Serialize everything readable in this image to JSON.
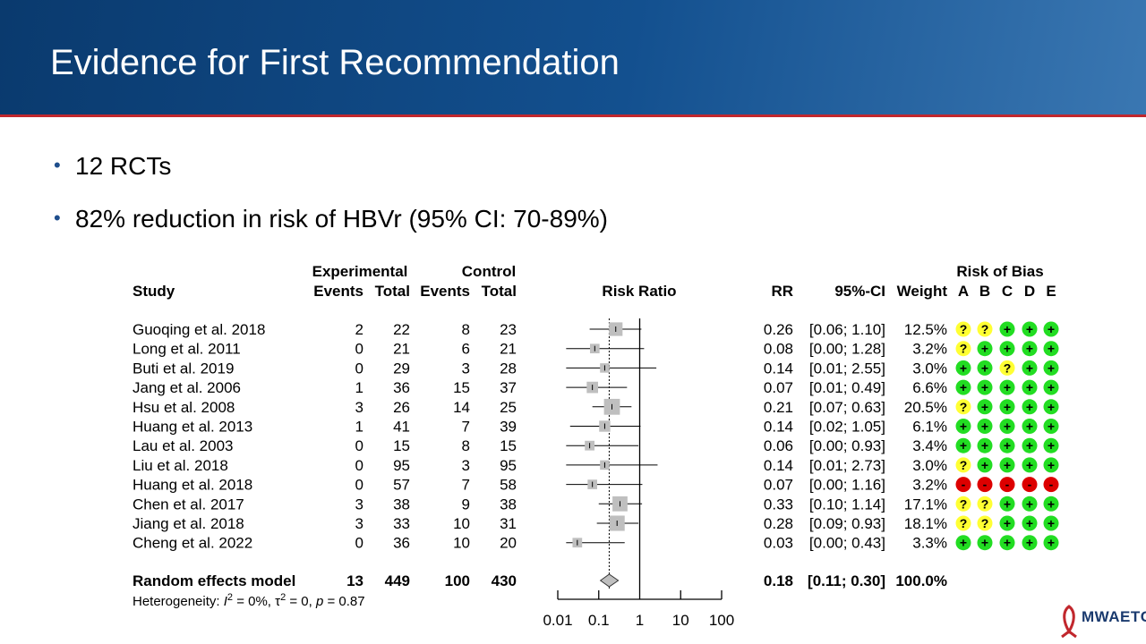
{
  "slide": {
    "title": "Evidence for First Recommendation",
    "bullets": [
      "12 RCTs",
      "82% reduction in risk of HBVr (95% CI: 70-89%)"
    ],
    "logo_text": "MWAETC"
  },
  "colors": {
    "header": "#13508f",
    "accent": "#c1272d",
    "rob_yes": "#22dd22",
    "rob_unclear": "#ffff33",
    "rob_no": "#dd0000",
    "box": "#bfbfbf"
  },
  "chart_data": {
    "type": "forest",
    "headers": {
      "study": "Study",
      "group_exp": "Experimental",
      "group_ctrl": "Control",
      "events": "Events",
      "total": "Total",
      "plot": "Risk Ratio",
      "rr": "RR",
      "ci": "95%-CI",
      "weight": "Weight",
      "rob_title": "Risk of Bias",
      "rob_domains": [
        "A",
        "B",
        "C",
        "D",
        "E"
      ]
    },
    "x_scale": "log",
    "xlim": [
      0.01,
      100
    ],
    "reference_line": 1,
    "x_ticks": [
      0.01,
      0.1,
      1,
      10,
      100
    ],
    "x_tick_labels": [
      "0.01",
      "0.1",
      "1",
      "10",
      "100"
    ],
    "studies": [
      {
        "name": "Guoqing et al. 2018",
        "e_ev": "2",
        "e_tot": "22",
        "c_ev": "8",
        "c_tot": "23",
        "rr": 0.26,
        "lo": 0.06,
        "hi": 1.1,
        "rr_txt": "0.26",
        "ci_txt": "[0.06; 1.10]",
        "weight": 12.5,
        "weight_txt": "12.5%",
        "rob": [
          "?",
          "?",
          "+",
          "+",
          "+"
        ]
      },
      {
        "name": "Long et al. 2011",
        "e_ev": "0",
        "e_tot": "21",
        "c_ev": "6",
        "c_tot": "21",
        "rr": 0.08,
        "lo": 0.0,
        "hi": 1.28,
        "rr_txt": "0.08",
        "ci_txt": "[0.00; 1.28]",
        "weight": 3.2,
        "weight_txt": "3.2%",
        "rob": [
          "?",
          "+",
          "+",
          "+",
          "+"
        ]
      },
      {
        "name": "Buti et al. 2019",
        "e_ev": "0",
        "e_tot": "29",
        "c_ev": "3",
        "c_tot": "28",
        "rr": 0.14,
        "lo": 0.01,
        "hi": 2.55,
        "rr_txt": "0.14",
        "ci_txt": "[0.01; 2.55]",
        "weight": 3.0,
        "weight_txt": "3.0%",
        "rob": [
          "+",
          "+",
          "?",
          "+",
          "+"
        ]
      },
      {
        "name": "Jang et al. 2006",
        "e_ev": "1",
        "e_tot": "36",
        "c_ev": "15",
        "c_tot": "37",
        "rr": 0.07,
        "lo": 0.01,
        "hi": 0.49,
        "rr_txt": "0.07",
        "ci_txt": "[0.01; 0.49]",
        "weight": 6.6,
        "weight_txt": "6.6%",
        "rob": [
          "+",
          "+",
          "+",
          "+",
          "+"
        ]
      },
      {
        "name": "Hsu et al. 2008",
        "e_ev": "3",
        "e_tot": "26",
        "c_ev": "14",
        "c_tot": "25",
        "rr": 0.21,
        "lo": 0.07,
        "hi": 0.63,
        "rr_txt": "0.21",
        "ci_txt": "[0.07; 0.63]",
        "weight": 20.5,
        "weight_txt": "20.5%",
        "rob": [
          "?",
          "+",
          "+",
          "+",
          "+"
        ]
      },
      {
        "name": "Huang et al. 2013",
        "e_ev": "1",
        "e_tot": "41",
        "c_ev": "7",
        "c_tot": "39",
        "rr": 0.14,
        "lo": 0.02,
        "hi": 1.05,
        "rr_txt": "0.14",
        "ci_txt": "[0.02; 1.05]",
        "weight": 6.1,
        "weight_txt": "6.1%",
        "rob": [
          "+",
          "+",
          "+",
          "+",
          "+"
        ]
      },
      {
        "name": "Lau et al. 2003",
        "e_ev": "0",
        "e_tot": "15",
        "c_ev": "8",
        "c_tot": "15",
        "rr": 0.06,
        "lo": 0.0,
        "hi": 0.93,
        "rr_txt": "0.06",
        "ci_txt": "[0.00; 0.93]",
        "weight": 3.4,
        "weight_txt": "3.4%",
        "rob": [
          "+",
          "+",
          "+",
          "+",
          "+"
        ]
      },
      {
        "name": "Liu et al. 2018",
        "e_ev": "0",
        "e_tot": "95",
        "c_ev": "3",
        "c_tot": "95",
        "rr": 0.14,
        "lo": 0.01,
        "hi": 2.73,
        "rr_txt": "0.14",
        "ci_txt": "[0.01; 2.73]",
        "weight": 3.0,
        "weight_txt": "3.0%",
        "rob": [
          "?",
          "+",
          "+",
          "+",
          "+"
        ]
      },
      {
        "name": "Huang et al. 2018",
        "e_ev": "0",
        "e_tot": "57",
        "c_ev": "7",
        "c_tot": "58",
        "rr": 0.07,
        "lo": 0.0,
        "hi": 1.16,
        "rr_txt": "0.07",
        "ci_txt": "[0.00; 1.16]",
        "weight": 3.2,
        "weight_txt": "3.2%",
        "rob": [
          "-",
          "-",
          "-",
          "-",
          "-"
        ]
      },
      {
        "name": "Chen et al. 2017",
        "e_ev": "3",
        "e_tot": "38",
        "c_ev": "9",
        "c_tot": "38",
        "rr": 0.33,
        "lo": 0.1,
        "hi": 1.14,
        "rr_txt": "0.33",
        "ci_txt": "[0.10; 1.14]",
        "weight": 17.1,
        "weight_txt": "17.1%",
        "rob": [
          "?",
          "?",
          "+",
          "+",
          "+"
        ]
      },
      {
        "name": "Jiang et al. 2018",
        "e_ev": "3",
        "e_tot": "33",
        "c_ev": "10",
        "c_tot": "31",
        "rr": 0.28,
        "lo": 0.09,
        "hi": 0.93,
        "rr_txt": "0.28",
        "ci_txt": "[0.09; 0.93]",
        "weight": 18.1,
        "weight_txt": "18.1%",
        "rob": [
          "?",
          "?",
          "+",
          "+",
          "+"
        ]
      },
      {
        "name": "Cheng et al. 2022",
        "e_ev": "0",
        "e_tot": "36",
        "c_ev": "10",
        "c_tot": "20",
        "rr": 0.03,
        "lo": 0.0,
        "hi": 0.43,
        "rr_txt": "0.03",
        "ci_txt": "[0.00; 0.43]",
        "weight": 3.3,
        "weight_txt": "3.3%",
        "rob": [
          "+",
          "+",
          "+",
          "+",
          "+"
        ]
      }
    ],
    "summary": {
      "name": "Random effects model",
      "e_ev": "13",
      "e_tot": "449",
      "c_ev": "100",
      "c_tot": "430",
      "rr": 0.18,
      "lo": 0.11,
      "hi": 0.3,
      "rr_txt": "0.18",
      "ci_txt": "[0.11; 0.30]",
      "weight_txt": "100.0%"
    },
    "heterogeneity": {
      "prefix": "Heterogeneity: ",
      "i2_sym": "I",
      "i2_sup": "2",
      "i2_val": " = 0%, ",
      "tau_sym": "τ",
      "tau_sup": "2",
      "tau_val": " = 0, ",
      "p_sym": "p",
      "p_val": " = 0.87"
    }
  }
}
